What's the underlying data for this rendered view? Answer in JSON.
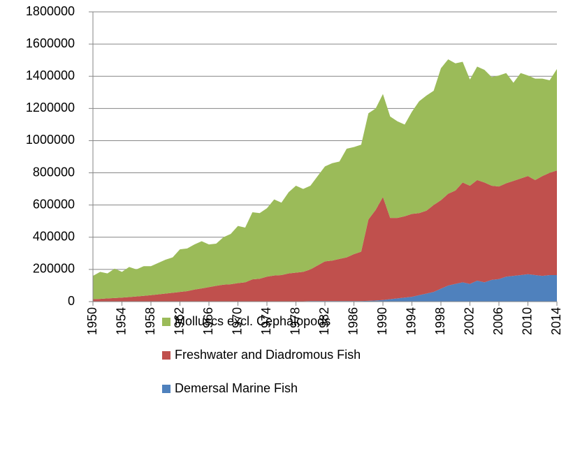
{
  "chart_data": {
    "type": "stacked_area",
    "categories": [
      "1950",
      null,
      null,
      null,
      "1954",
      null,
      null,
      null,
      "1958",
      null,
      null,
      null,
      "1962",
      null,
      null,
      null,
      "1966",
      null,
      null,
      null,
      "1970",
      null,
      null,
      null,
      "1974",
      null,
      null,
      null,
      "1978",
      null,
      null,
      null,
      "1982",
      null,
      null,
      null,
      "1986",
      null,
      null,
      null,
      "1990",
      null,
      null,
      null,
      "1994",
      null,
      null,
      null,
      "1998",
      null,
      null,
      null,
      "2002",
      null,
      null,
      null,
      "2006",
      null,
      null,
      null,
      "2010",
      null,
      null,
      null,
      "2014"
    ],
    "series": [
      {
        "name": "Molluscs excl. Cephalopods",
        "color": "#9bbb59",
        "values": [
          145000,
          168000,
          155000,
          183000,
          160000,
          187000,
          168000,
          184000,
          180000,
          195000,
          210000,
          220000,
          265000,
          265000,
          280000,
          293000,
          265000,
          262000,
          295000,
          312000,
          355000,
          340000,
          417000,
          408000,
          425000,
          473000,
          450000,
          505000,
          540000,
          515000,
          520000,
          555000,
          590000,
          605000,
          605000,
          675000,
          665000,
          665000,
          660000,
          630000,
          640000,
          630000,
          600000,
          570000,
          635000,
          695000,
          715000,
          710000,
          820000,
          835000,
          790000,
          750000,
          660000,
          705000,
          700000,
          675000,
          690000,
          685000,
          610000,
          655000,
          625000,
          630000,
          605000,
          575000,
          630000
        ]
      },
      {
        "name": "Freshwater and Diadromous Fish",
        "color": "#c0504d",
        "values": [
          14000,
          16000,
          19000,
          21000,
          24000,
          27000,
          31000,
          35000,
          39000,
          44000,
          49000,
          54000,
          59000,
          64000,
          74000,
          81000,
          89000,
          97000,
          104000,
          107000,
          113000,
          118000,
          136000,
          140000,
          153000,
          160000,
          163000,
          173000,
          178000,
          183000,
          196000,
          221000,
          246000,
          251000,
          261000,
          271000,
          291000,
          306000,
          505000,
          563000,
          640000,
          505000,
          500000,
          505000,
          515000,
          510000,
          515000,
          540000,
          550000,
          570000,
          580000,
          620000,
          610000,
          625000,
          620000,
          585000,
          575000,
          580000,
          590000,
          600000,
          610000,
          590000,
          620000,
          635000,
          650000
        ]
      },
      {
        "name": "Demersal Marine Fish",
        "color": "#4f81bd",
        "values": [
          1000,
          1000,
          1000,
          1000,
          1000,
          1000,
          1000,
          1000,
          1000,
          1000,
          1000,
          1000,
          1000,
          1000,
          1000,
          1000,
          1000,
          1000,
          1000,
          1000,
          2000,
          2000,
          2000,
          2000,
          2000,
          2000,
          2000,
          2000,
          2000,
          2000,
          4000,
          4000,
          4000,
          4000,
          4000,
          4000,
          4000,
          4000,
          5000,
          7000,
          10000,
          15000,
          20000,
          25000,
          30000,
          40000,
          50000,
          60000,
          80000,
          100000,
          110000,
          120000,
          110000,
          130000,
          120000,
          135000,
          140000,
          155000,
          160000,
          165000,
          170000,
          165000,
          160000,
          165000,
          165000
        ]
      }
    ],
    "ylim": [
      0,
      1800000
    ],
    "yticks": [
      0,
      200000,
      400000,
      600000,
      800000,
      1000000,
      1200000,
      1400000,
      1600000,
      1800000
    ],
    "grid": true
  }
}
